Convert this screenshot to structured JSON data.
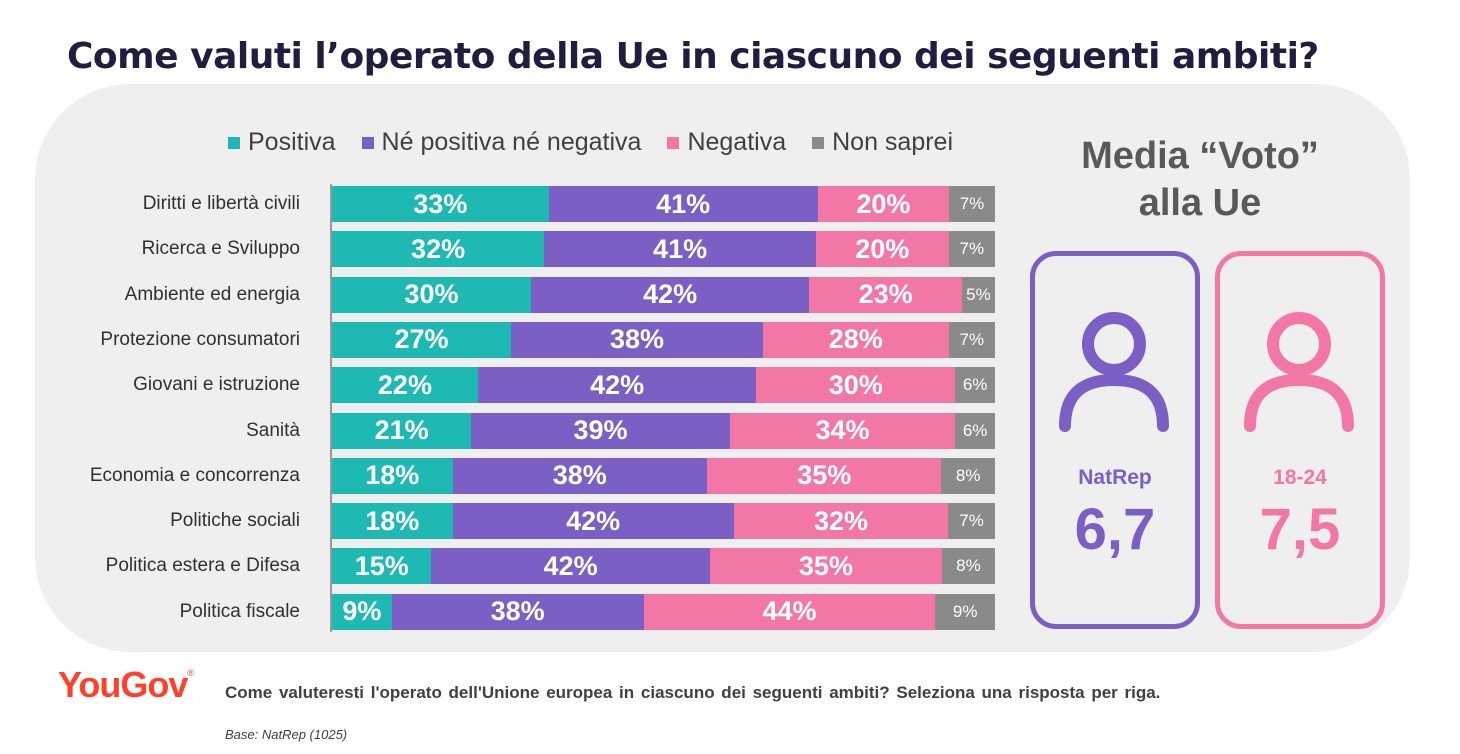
{
  "title": "Come valuti l’operato della Ue in ciascuno dei seguenti ambiti?",
  "chart_data": {
    "type": "bar",
    "stacked": true,
    "orientation": "horizontal",
    "categories": [
      "Diritti e libertà civili",
      "Ricerca e Sviluppo",
      "Ambiente ed energia",
      "Protezione consumatori",
      "Giovani e istruzione",
      "Sanità",
      "Economia e concorrenza",
      "Politiche sociali",
      "Politica estera e Difesa",
      "Politica fiscale"
    ],
    "series": [
      {
        "name": "Positiva",
        "color": "#1fb9b3",
        "values": [
          33,
          32,
          30,
          27,
          22,
          21,
          18,
          18,
          15,
          9
        ]
      },
      {
        "name": "Né positiva né negativa",
        "color": "#7b5fc4",
        "values": [
          41,
          41,
          42,
          38,
          42,
          39,
          38,
          42,
          42,
          38
        ]
      },
      {
        "name": "Negativa",
        "color": "#f277a6",
        "values": [
          20,
          20,
          23,
          28,
          30,
          34,
          35,
          32,
          35,
          44
        ]
      },
      {
        "name": "Non saprei",
        "color": "#8a8a8a",
        "values": [
          7,
          7,
          5,
          7,
          6,
          6,
          8,
          7,
          8,
          9
        ]
      }
    ],
    "value_suffix": "%",
    "legend_position": "top"
  },
  "media": {
    "title_line1": "Media “Voto”",
    "title_line2": "alla Ue",
    "cards": [
      {
        "label": "NatRep",
        "value": "6,7",
        "color": "#7b5fc4",
        "icon": "person-icon"
      },
      {
        "label": "18-24",
        "value": "7,5",
        "color": "#f277a6",
        "icon": "person-icon"
      }
    ]
  },
  "footer": {
    "logo": "YouGov",
    "logo_mark": "®",
    "question": "Come valuteresti l'operato dell'Unione europea in ciascuno dei seguenti ambiti? Seleziona una risposta per riga.",
    "base": "Base: NatRep (1025)"
  }
}
